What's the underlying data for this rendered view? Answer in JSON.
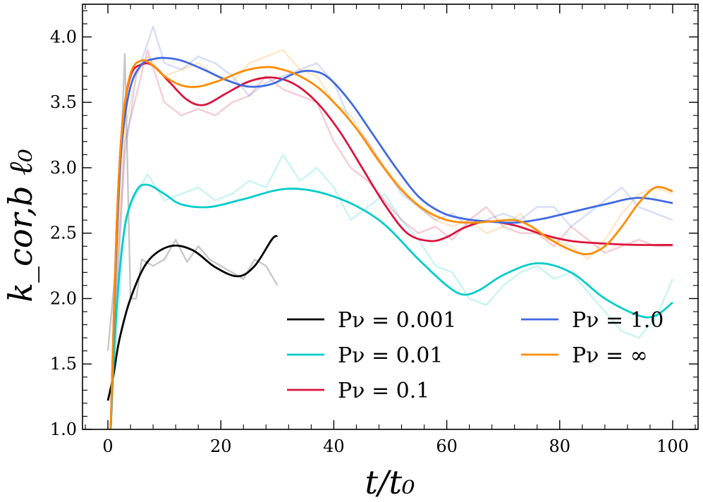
{
  "chart_data": {
    "type": "line",
    "title": "",
    "xlabel": "t/t₀",
    "ylabel": "k_cor,b ℓ₀",
    "xlim": [
      -4.5,
      104.5
    ],
    "ylim": [
      1.0,
      4.25
    ],
    "x_ticks": [
      0,
      20,
      40,
      60,
      80,
      100
    ],
    "x_tick_labels": [
      "0",
      "20",
      "40",
      "60",
      "80",
      "100"
    ],
    "y_ticks": [
      1.0,
      1.5,
      2.0,
      2.5,
      3.0,
      3.5,
      4.0
    ],
    "y_tick_labels": [
      "1.0",
      "1.5",
      "2.0",
      "2.5",
      "3.0",
      "3.5",
      "4.0"
    ],
    "grid": false,
    "legend_position": "lower-right",
    "series": [
      {
        "name": "Pν = 0.001",
        "color": "#000000",
        "smooth": {
          "x": [
            0,
            1,
            2,
            4,
            7,
            11,
            15,
            19,
            23,
            26,
            29,
            30
          ],
          "y": [
            1.22,
            1.42,
            1.68,
            2.0,
            2.28,
            2.4,
            2.37,
            2.24,
            2.17,
            2.25,
            2.45,
            2.48
          ]
        },
        "raw": {
          "x": [
            0,
            1.5,
            3,
            4,
            5,
            6,
            8,
            10,
            12,
            14,
            16,
            18,
            20,
            22,
            24,
            26,
            28,
            30
          ],
          "y": [
            1.6,
            2.3,
            3.87,
            2.0,
            2.0,
            2.3,
            2.25,
            2.3,
            2.45,
            2.28,
            2.4,
            2.3,
            2.25,
            2.2,
            2.15,
            2.3,
            2.25,
            2.1
          ]
        }
      },
      {
        "name": "Pν = 0.01",
        "color": "#00cdc8",
        "smooth": {
          "x": [
            0.5,
            1.5,
            3,
            5,
            7,
            10,
            13,
            18,
            24,
            32,
            40,
            48,
            55,
            60,
            63,
            66,
            70,
            76,
            82,
            88,
            94,
            97,
            100
          ],
          "y": [
            1.0,
            1.9,
            2.55,
            2.82,
            2.87,
            2.8,
            2.72,
            2.7,
            2.76,
            2.84,
            2.78,
            2.6,
            2.3,
            2.1,
            2.03,
            2.07,
            2.18,
            2.27,
            2.2,
            2.0,
            1.87,
            1.87,
            1.97
          ]
        },
        "raw": {
          "x": [
            1,
            3,
            5,
            7,
            10,
            13,
            16,
            19,
            22,
            25,
            28,
            31,
            34,
            37,
            40,
            43,
            46,
            49,
            52,
            55,
            58,
            61,
            64,
            67,
            70,
            73,
            76,
            79,
            82,
            85,
            88,
            91,
            94,
            97,
            100
          ],
          "y": [
            1.4,
            2.6,
            2.8,
            2.95,
            2.75,
            2.8,
            2.85,
            2.75,
            2.8,
            2.9,
            2.85,
            3.1,
            2.9,
            3.0,
            2.85,
            2.6,
            2.7,
            2.8,
            2.6,
            2.45,
            2.25,
            2.2,
            2.0,
            1.95,
            2.1,
            2.2,
            2.25,
            2.15,
            2.2,
            2.05,
            1.9,
            1.75,
            1.7,
            1.85,
            2.15
          ]
        }
      },
      {
        "name": "Pν = 0.1",
        "color": "#dc143c",
        "smooth": {
          "x": [
            0.5,
            1.5,
            2.5,
            4,
            6,
            8,
            11,
            14,
            17,
            21,
            25,
            29,
            33,
            37,
            41,
            45,
            49,
            53,
            57,
            60,
            63,
            67,
            72,
            77,
            82,
            88,
            94,
            100
          ],
          "y": [
            1.0,
            2.5,
            3.3,
            3.7,
            3.79,
            3.78,
            3.65,
            3.52,
            3.48,
            3.57,
            3.66,
            3.69,
            3.64,
            3.5,
            3.28,
            3.0,
            2.72,
            2.5,
            2.44,
            2.47,
            2.54,
            2.59,
            2.56,
            2.49,
            2.44,
            2.42,
            2.41,
            2.41
          ]
        },
        "raw": {
          "x": [
            1,
            3,
            5,
            7,
            10,
            13,
            16,
            19,
            22,
            25,
            28,
            31,
            34,
            37,
            40,
            43,
            46,
            49,
            52,
            55,
            58,
            61,
            64,
            67,
            70,
            73,
            76,
            79,
            82,
            85,
            88,
            91,
            94,
            97,
            100
          ],
          "y": [
            1.7,
            3.2,
            3.55,
            3.9,
            3.5,
            3.4,
            3.45,
            3.4,
            3.5,
            3.55,
            3.7,
            3.6,
            3.55,
            3.5,
            3.2,
            3.0,
            2.9,
            2.75,
            2.6,
            2.5,
            2.55,
            2.45,
            2.6,
            2.7,
            2.55,
            2.5,
            2.5,
            2.4,
            2.55,
            2.45,
            2.35,
            2.4,
            2.45,
            2.4,
            2.4
          ]
        }
      },
      {
        "name": "Pν = 1.0",
        "color": "#4169e1",
        "smooth": {
          "x": [
            0.5,
            1.5,
            2.5,
            4,
            6,
            8,
            10,
            13,
            17,
            21,
            25,
            29,
            33,
            36,
            39,
            43,
            47,
            51,
            55,
            59,
            63,
            67,
            72,
            77,
            82,
            88,
            94,
            100
          ],
          "y": [
            1.0,
            2.4,
            3.2,
            3.62,
            3.79,
            3.83,
            3.84,
            3.82,
            3.75,
            3.67,
            3.62,
            3.64,
            3.72,
            3.74,
            3.69,
            3.5,
            3.25,
            3.0,
            2.78,
            2.66,
            2.61,
            2.59,
            2.58,
            2.61,
            2.66,
            2.72,
            2.77,
            2.73
          ]
        },
        "raw": {
          "x": [
            1,
            3,
            5,
            7,
            8,
            10,
            13,
            16,
            19,
            22,
            25,
            28,
            31,
            34,
            37,
            40,
            43,
            46,
            49,
            52,
            55,
            58,
            61,
            64,
            67,
            70,
            73,
            76,
            79,
            82,
            85,
            88,
            91,
            94,
            97,
            100
          ],
          "y": [
            1.6,
            3.1,
            3.7,
            3.95,
            4.08,
            3.8,
            3.75,
            3.85,
            3.8,
            3.7,
            3.55,
            3.65,
            3.7,
            3.75,
            3.8,
            3.65,
            3.35,
            3.2,
            3.0,
            2.8,
            2.7,
            2.6,
            2.65,
            2.55,
            2.6,
            2.65,
            2.6,
            2.7,
            2.7,
            2.55,
            2.65,
            2.75,
            2.85,
            2.7,
            2.65,
            2.6
          ]
        }
      },
      {
        "name": "Pν = ∞",
        "color": "#ff8c00",
        "smooth": {
          "x": [
            0.5,
            1.5,
            2.5,
            4,
            6,
            8,
            10,
            13,
            16,
            20,
            24,
            28,
            31,
            34,
            37,
            40,
            44,
            48,
            52,
            56,
            60,
            64,
            68,
            72,
            75,
            78,
            82,
            85,
            88,
            91,
            94,
            97,
            100
          ],
          "y": [
            1.0,
            2.5,
            3.3,
            3.72,
            3.82,
            3.78,
            3.7,
            3.63,
            3.62,
            3.67,
            3.74,
            3.77,
            3.75,
            3.7,
            3.62,
            3.5,
            3.3,
            3.05,
            2.83,
            2.68,
            2.6,
            2.58,
            2.59,
            2.6,
            2.55,
            2.46,
            2.37,
            2.34,
            2.4,
            2.55,
            2.73,
            2.85,
            2.82
          ]
        },
        "raw": {
          "x": [
            1,
            3,
            5,
            7,
            10,
            13,
            16,
            19,
            22,
            25,
            28,
            31,
            34,
            37,
            40,
            43,
            46,
            49,
            52,
            55,
            58,
            61,
            64,
            67,
            70,
            73,
            76,
            79,
            82,
            85,
            88,
            91,
            94,
            97,
            100
          ],
          "y": [
            1.8,
            3.3,
            3.7,
            3.85,
            3.7,
            3.75,
            3.8,
            3.7,
            3.65,
            3.8,
            3.85,
            3.9,
            3.75,
            3.7,
            3.5,
            3.4,
            3.2,
            3.0,
            2.85,
            2.7,
            2.6,
            2.55,
            2.6,
            2.5,
            2.55,
            2.65,
            2.5,
            2.45,
            2.4,
            2.3,
            2.45,
            2.65,
            2.8,
            2.85,
            2.8
          ]
        }
      }
    ]
  }
}
